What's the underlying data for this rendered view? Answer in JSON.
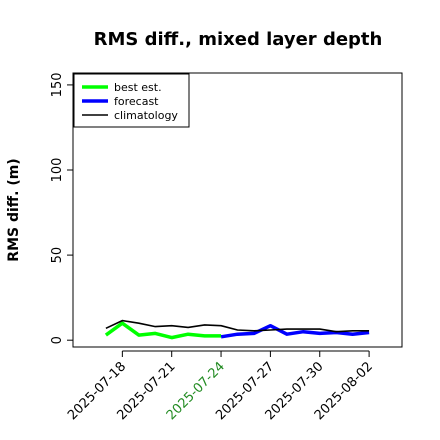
{
  "chart_data": {
    "type": "line",
    "title": "RMS diff., mixed layer depth",
    "xlabel": "",
    "ylabel": "RMS diff. (m)",
    "ylim": [
      -4,
      157
    ],
    "xlim": [
      "2025-07-15",
      "2025-08-04"
    ],
    "yticks": [
      0,
      50,
      100,
      150
    ],
    "xticks": [
      "2025-07-18",
      "2025-07-21",
      "2025-07-24",
      "2025-07-27",
      "2025-07-30",
      "2025-08-02"
    ],
    "highlight_tick": "2025-07-24",
    "highlight_color": "#228b22",
    "legend_position": "top-left",
    "series": [
      {
        "name": "best est.",
        "color": "#00ff00",
        "width": 3.5,
        "x": [
          "2025-07-17",
          "2025-07-18",
          "2025-07-19",
          "2025-07-20",
          "2025-07-21",
          "2025-07-22",
          "2025-07-23",
          "2025-07-24"
        ],
        "values": [
          3,
          10,
          3,
          4,
          1.5,
          3.5,
          2.5,
          2.5
        ]
      },
      {
        "name": "forecast",
        "color": "#0000ff",
        "width": 3.5,
        "x": [
          "2025-07-24",
          "2025-07-25",
          "2025-07-26",
          "2025-07-27",
          "2025-07-28",
          "2025-07-29",
          "2025-07-30",
          "2025-07-31",
          "2025-08-01",
          "2025-08-02"
        ],
        "values": [
          2,
          3.5,
          4,
          8.5,
          3.5,
          5,
          4,
          4.5,
          3.5,
          4.5
        ]
      },
      {
        "name": "climatology",
        "color": "#000000",
        "width": 1.6,
        "x": [
          "2025-07-17",
          "2025-07-18",
          "2025-07-19",
          "2025-07-20",
          "2025-07-21",
          "2025-07-22",
          "2025-07-23",
          "2025-07-24",
          "2025-07-25",
          "2025-07-26",
          "2025-07-27",
          "2025-07-28",
          "2025-07-29",
          "2025-07-30",
          "2025-07-31",
          "2025-08-01",
          "2025-08-02"
        ],
        "values": [
          7,
          11.5,
          10,
          8,
          8.5,
          7.5,
          9,
          8.5,
          6,
          5.5,
          6,
          6.5,
          6.5,
          6.5,
          5,
          5.5,
          5.5
        ]
      }
    ]
  }
}
